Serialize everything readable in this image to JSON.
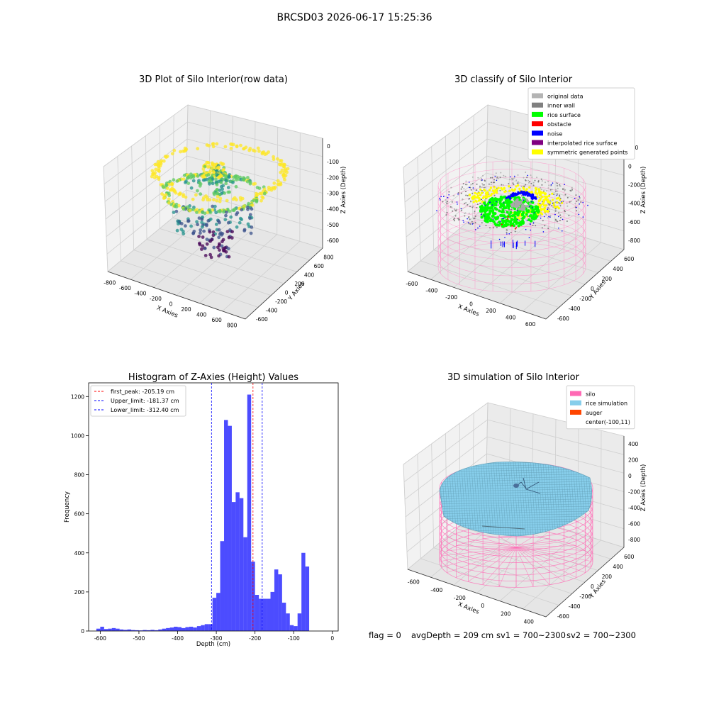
{
  "suptitle": "BRCSD03 2026-06-17 15:25:36",
  "status": {
    "flag": "flag = 0",
    "avg_depth": "avgDepth = 209 cm",
    "sv1": "sv1 = 700~2300",
    "sv2": "sv2 = 700~2300"
  },
  "chart_data": [
    {
      "type": "scatter",
      "title": "3D Plot of Silo Interior(row data)",
      "xlabel": "X Axies",
      "ylabel": "Y Axies",
      "zlabel": "Z Axies (Depth)",
      "x_ticks": [
        "-800",
        "-600",
        "-400",
        "-200",
        "0",
        "200",
        "400",
        "600",
        "800"
      ],
      "y_ticks": [
        "-600",
        "-400",
        "-200",
        "0",
        "200",
        "400",
        "600",
        "800"
      ],
      "z_ticks": [
        "0",
        "-100",
        "-200",
        "-300",
        "-400",
        "-500",
        "-600"
      ],
      "colormap": [
        "#440154",
        "#3b528b",
        "#21918c",
        "#5ec962",
        "#fde725"
      ]
    },
    {
      "type": "scatter",
      "title": "3D classify of Silo Interior",
      "xlabel": "X Axies",
      "ylabel": "Y Axies",
      "zlabel": "Z Axies (Depth)",
      "x_ticks": [
        "-600",
        "-400",
        "-200",
        "0",
        "200",
        "400",
        "600"
      ],
      "y_ticks": [
        "-600",
        "-400",
        "-200",
        "0",
        "200",
        "400",
        "600"
      ],
      "z_ticks": [
        "200",
        "0",
        "-200",
        "-400",
        "-600",
        "-800"
      ],
      "legend": [
        {
          "label": "original data",
          "color": "#b4b4b4"
        },
        {
          "label": "inner wall",
          "color": "#808080"
        },
        {
          "label": "rice surface",
          "color": "#00ff00"
        },
        {
          "label": "obstacle",
          "color": "#ff0000"
        },
        {
          "label": "noise",
          "color": "#0000ff"
        },
        {
          "label": "interpolated rice surface",
          "color": "#800080"
        },
        {
          "label": "symmetric generated points",
          "color": "#ffff00"
        }
      ],
      "legend_position": "top-right"
    },
    {
      "type": "bar",
      "title": "Histogram of Z-Axies (Height) Values",
      "xlabel": "Depth (cm)",
      "ylabel": "Frequency",
      "xlim": [
        -630,
        15
      ],
      "ylim": [
        0,
        1270
      ],
      "x_ticks": [
        -600,
        -500,
        -400,
        -300,
        -200,
        -100,
        0
      ],
      "y_ticks": [
        0,
        200,
        400,
        600,
        800,
        1000,
        1200
      ],
      "bar_color": "#0000ff",
      "bin_width": 10,
      "bins": [
        [
          -610,
          12
        ],
        [
          -600,
          22
        ],
        [
          -590,
          10
        ],
        [
          -580,
          12
        ],
        [
          -570,
          15
        ],
        [
          -560,
          12
        ],
        [
          -550,
          8
        ],
        [
          -540,
          6
        ],
        [
          -530,
          8
        ],
        [
          -520,
          5
        ],
        [
          -510,
          4
        ],
        [
          -500,
          3
        ],
        [
          -490,
          5
        ],
        [
          -480,
          4
        ],
        [
          -470,
          6
        ],
        [
          -460,
          4
        ],
        [
          -450,
          8
        ],
        [
          -440,
          12
        ],
        [
          -430,
          15
        ],
        [
          -420,
          18
        ],
        [
          -410,
          22
        ],
        [
          -400,
          20
        ],
        [
          -390,
          15
        ],
        [
          -380,
          20
        ],
        [
          -370,
          22
        ],
        [
          -360,
          18
        ],
        [
          -350,
          25
        ],
        [
          -340,
          30
        ],
        [
          -330,
          35
        ],
        [
          -320,
          35
        ],
        [
          -310,
          170
        ],
        [
          -300,
          195
        ],
        [
          -290,
          460
        ],
        [
          -280,
          1080
        ],
        [
          -270,
          1050
        ],
        [
          -260,
          660
        ],
        [
          -250,
          710
        ],
        [
          -240,
          680
        ],
        [
          -230,
          480
        ],
        [
          -220,
          1210
        ],
        [
          -210,
          355
        ],
        [
          -200,
          185
        ],
        [
          -190,
          165
        ],
        [
          -180,
          165
        ],
        [
          -170,
          165
        ],
        [
          -160,
          200
        ],
        [
          -150,
          315
        ],
        [
          -140,
          290
        ],
        [
          -130,
          145
        ],
        [
          -120,
          90
        ],
        [
          -110,
          30
        ],
        [
          -100,
          25
        ],
        [
          -90,
          90
        ],
        [
          -80,
          400
        ],
        [
          -70,
          330
        ]
      ],
      "vlines": [
        {
          "label": "first_peak: -205.19 cm",
          "x": -205.19,
          "color": "#ff0000"
        },
        {
          "label": "Upper_limit: -181.37 cm",
          "x": -181.37,
          "color": "#0000ff"
        },
        {
          "label": "Lower_limit: -312.40 cm",
          "x": -312.4,
          "color": "#0000ff"
        }
      ],
      "legend_position": "top-left"
    },
    {
      "type": "scatter",
      "title": "3D simulation of Silo Interior",
      "xlabel": "X Axies",
      "ylabel": "Y Axies",
      "zlabel": "Z Axies (Depth)",
      "x_ticks": [
        "-600",
        "-400",
        "-200",
        "0",
        "200",
        "400"
      ],
      "y_ticks": [
        "-600",
        "-400",
        "-200",
        "0",
        "200",
        "400",
        "600"
      ],
      "z_ticks": [
        "400",
        "200",
        "0",
        "-200",
        "-400",
        "-600",
        "-800"
      ],
      "legend": [
        {
          "label": "silo",
          "color": "#ff69b4"
        },
        {
          "label": "rice simulation",
          "color": "#87ceeb"
        },
        {
          "label": "auger",
          "color": "#ff4500"
        },
        {
          "label": "center(-100,11)",
          "color": "none"
        }
      ],
      "legend_position": "top-right"
    }
  ]
}
